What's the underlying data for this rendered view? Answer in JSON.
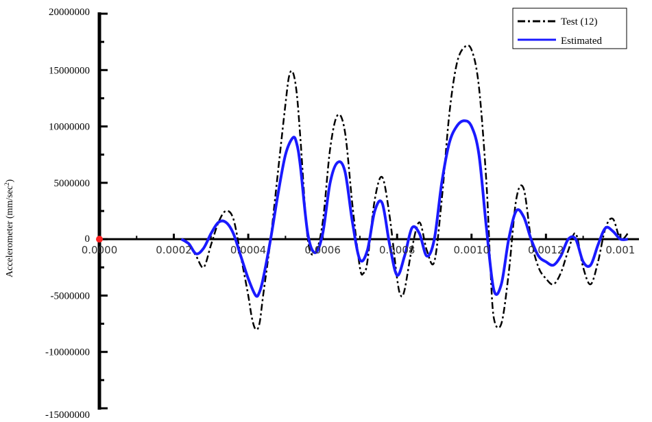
{
  "chart_data": {
    "type": "line",
    "title": "",
    "xlabel": "",
    "ylabel": "Accelerometer (mm/sec",
    "ylabel_sup": "2",
    "ylabel_close": ")",
    "xlim": [
      0,
      0.00145
    ],
    "ylim": [
      -15000000,
      20000000
    ],
    "y_ticks": [
      "20000000",
      "15000000",
      "10000000",
      "5000000",
      "0",
      "-5000000",
      "-10000000",
      "-15000000"
    ],
    "y_tick_values": [
      20000000,
      15000000,
      10000000,
      5000000,
      0,
      -5000000,
      -10000000,
      -15000000
    ],
    "x_ticks": [
      "0.0000",
      "0.0002",
      "0.0004",
      "0.0006",
      "0.0008",
      "0.0010",
      "0.0012",
      "0.001"
    ],
    "x_tick_values": [
      0,
      0.0002,
      0.0004,
      0.0006,
      0.0008,
      0.001,
      0.0012,
      0.0014
    ],
    "grid": false,
    "legend": "top-right",
    "series": [
      {
        "name": "Test (12)",
        "color": "#000000",
        "style": "dash-dot",
        "x": [
          0.00022,
          0.00024,
          0.00026,
          0.00028,
          0.0003,
          0.00032,
          0.00034,
          0.00036,
          0.00038,
          0.0004,
          0.00041,
          0.00042,
          0.00043,
          0.00044,
          0.00046,
          0.00048,
          0.0005,
          0.00051,
          0.00052,
          0.00053,
          0.00054,
          0.00056,
          0.00058,
          0.0006,
          0.00062,
          0.00064,
          0.00066,
          0.00068,
          0.0007,
          0.00071,
          0.00072,
          0.00074,
          0.00076,
          0.00078,
          0.0008,
          0.00081,
          0.00082,
          0.00084,
          0.00086,
          0.00088,
          0.0009,
          0.00092,
          0.00094,
          0.00096,
          0.00098,
          0.001,
          0.00102,
          0.00104,
          0.00105,
          0.00106,
          0.00108,
          0.0011,
          0.00112,
          0.00114,
          0.00116,
          0.00118,
          0.0012,
          0.00122,
          0.00124,
          0.00126,
          0.00128,
          0.0013,
          0.00132,
          0.00134,
          0.00136,
          0.00138,
          0.0014,
          0.00142
        ],
        "y": [
          0,
          -500000,
          -1500000,
          -2500000,
          -500000,
          1500000,
          2500000,
          1800000,
          -1500000,
          -5000000,
          -7000000,
          -8000000,
          -7500000,
          -5000000,
          0,
          6000000,
          12000000,
          14500000,
          14800000,
          13000000,
          9000000,
          0,
          -1200000,
          1500000,
          8000000,
          11000000,
          9500000,
          3000000,
          -2500000,
          -3000000,
          -2000000,
          3500000,
          5500000,
          2000000,
          -3500000,
          -5000000,
          -4500000,
          -800000,
          1500000,
          -1000000,
          -2000000,
          3500000,
          11000000,
          15500000,
          17000000,
          16800000,
          13500000,
          5000000,
          -2000000,
          -7000000,
          -7500000,
          -3000000,
          3500000,
          4500000,
          0,
          -2500000,
          -3500000,
          -4000000,
          -3000000,
          -1000000,
          500000,
          -2500000,
          -4000000,
          -2000000,
          1000000,
          1800000,
          0,
          500000
        ]
      },
      {
        "name": "Estimated",
        "color": "#1a1aff",
        "style": "solid",
        "x": [
          0.00022,
          0.00024,
          0.00026,
          0.00028,
          0.0003,
          0.00032,
          0.00034,
          0.00036,
          0.00038,
          0.0004,
          0.00042,
          0.00043,
          0.00044,
          0.00046,
          0.00048,
          0.0005,
          0.00052,
          0.00053,
          0.00054,
          0.00056,
          0.00058,
          0.0006,
          0.00062,
          0.00064,
          0.00066,
          0.00068,
          0.0007,
          0.00072,
          0.00074,
          0.00076,
          0.00078,
          0.0008,
          0.00082,
          0.00084,
          0.00086,
          0.00088,
          0.0009,
          0.00092,
          0.00094,
          0.00096,
          0.00098,
          0.001,
          0.00102,
          0.00104,
          0.00106,
          0.00108,
          0.0011,
          0.00112,
          0.00114,
          0.00116,
          0.00118,
          0.0012,
          0.00122,
          0.00124,
          0.00126,
          0.00128,
          0.0013,
          0.00132,
          0.00134,
          0.00136,
          0.00138,
          0.0014,
          0.00142
        ],
        "y": [
          0,
          -400000,
          -1300000,
          -800000,
          500000,
          1500000,
          1500000,
          500000,
          -1500000,
          -3500000,
          -5000000,
          -4700000,
          -3500000,
          0,
          4000000,
          7500000,
          9000000,
          8500000,
          6500000,
          500000,
          -1200000,
          500000,
          5000000,
          6800000,
          6000000,
          1500000,
          -1800000,
          -1000000,
          2500000,
          3200000,
          -500000,
          -3200000,
          -1500000,
          1000000,
          500000,
          -1500000,
          0,
          5000000,
          8500000,
          10000000,
          10500000,
          10000000,
          7500000,
          1000000,
          -4500000,
          -4000000,
          0,
          2500000,
          2000000,
          0,
          -1500000,
          -2000000,
          -2300000,
          -1500000,
          0,
          0,
          -2000000,
          -2300000,
          -500000,
          1000000,
          700000,
          0,
          0
        ]
      }
    ]
  }
}
